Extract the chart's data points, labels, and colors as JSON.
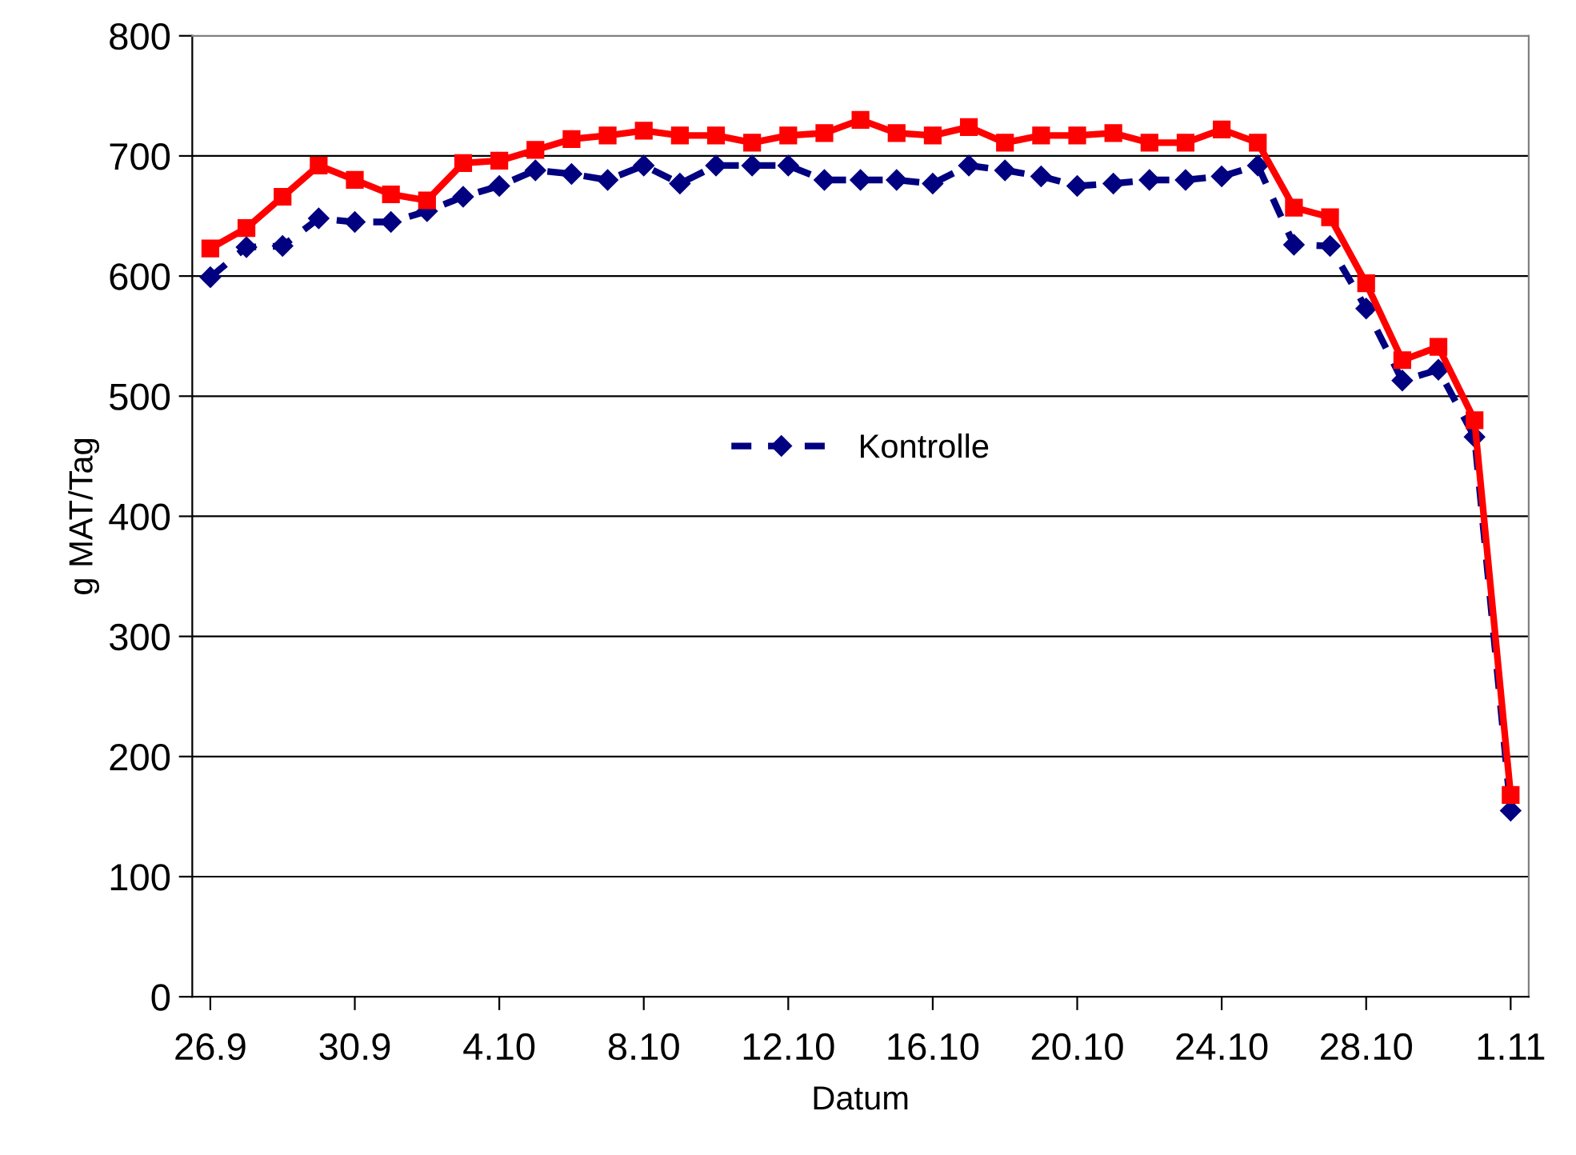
{
  "chart_data": {
    "type": "line",
    "xlabel": "Datum",
    "ylabel": "g MAT/Tag",
    "categories": [
      "26.9",
      null,
      null,
      null,
      "30.9",
      null,
      null,
      null,
      "4.10",
      null,
      null,
      null,
      "8.10",
      null,
      null,
      null,
      "12.10",
      null,
      null,
      null,
      "16.10",
      null,
      null,
      null,
      "20.10",
      null,
      null,
      null,
      "24.10",
      null,
      null,
      null,
      "28.10",
      null,
      null,
      null,
      "1.11"
    ],
    "series": [
      {
        "name": "Kontrolle",
        "color": "#000080",
        "marker": "diamond",
        "line_style": "dashed",
        "values": [
          599,
          624,
          625,
          648,
          645,
          645,
          654,
          666,
          675,
          688,
          685,
          680,
          692,
          677,
          692,
          692,
          692,
          680,
          680,
          680,
          677,
          692,
          688,
          683,
          675,
          677,
          680,
          680,
          683,
          692,
          626,
          625,
          573,
          513,
          522,
          466,
          155
        ]
      },
      {
        "color": "#ff0000",
        "marker": "square",
        "line_style": "solid",
        "values": [
          623,
          640,
          666,
          692,
          680,
          668,
          663,
          694,
          696,
          705,
          714,
          717,
          721,
          717,
          717,
          711,
          717,
          719,
          730,
          719,
          717,
          724,
          711,
          717,
          717,
          719,
          711,
          711,
          722,
          711,
          657,
          649,
          594,
          530,
          541,
          480,
          168
        ]
      }
    ],
    "ylim": [
      0,
      800
    ],
    "yticks": [
      0,
      100,
      200,
      300,
      400,
      500,
      600,
      700,
      800
    ],
    "grid": "y",
    "legend": "center"
  }
}
